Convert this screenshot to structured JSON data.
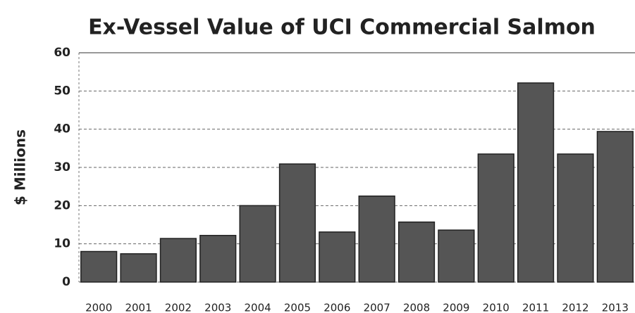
{
  "chart_data": {
    "type": "bar",
    "title": "Ex-Vessel Value of UCI Commercial Salmon",
    "y_label": "$ Millions",
    "categories": [
      "2000",
      "2001",
      "2002",
      "2003",
      "2004",
      "2005",
      "2006",
      "2007",
      "2008",
      "2009",
      "2010",
      "2011",
      "2012",
      "2013"
    ],
    "values": [
      8,
      7.4,
      11.4,
      12.2,
      20,
      30.9,
      13.1,
      22.5,
      15.7,
      13.6,
      33.5,
      52.1,
      33.5,
      39.4
    ],
    "color": "#555555",
    "ylim": [
      0,
      60
    ],
    "yticks": [
      0,
      10,
      20,
      30,
      40,
      50,
      60
    ],
    "grid": true
  }
}
